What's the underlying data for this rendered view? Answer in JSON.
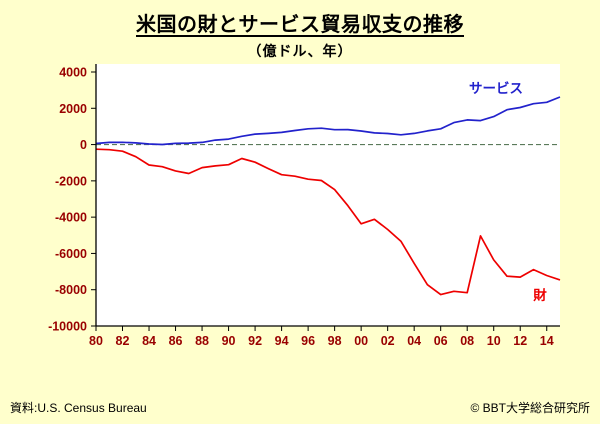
{
  "header": {
    "title": "米国の財とサービス貿易収支の推移",
    "subtitle": "（億ドル、年）"
  },
  "footer": {
    "source": "資料:U.S. Census Bureau",
    "copyright": "© BBT大学総合研究所"
  },
  "colors": {
    "page_bg": "#FFFFCC",
    "plot_bg": "#FFFFFF",
    "axis": "#000000",
    "axis_labels": "#990000",
    "zero_line": "#5A7A5A",
    "services_line": "#2222CC",
    "goods_line": "#EE0000"
  },
  "chart_data": {
    "type": "line",
    "title": "米国の財とサービス貿易収支の推移",
    "unit_note": "（億ドル、年）",
    "xlabel": "年",
    "ylabel": "億ドル",
    "ylim": [
      -10000,
      4000
    ],
    "yticks": [
      4000,
      2000,
      0,
      -2000,
      -4000,
      -6000,
      -8000,
      -10000
    ],
    "grid": false,
    "zero_line_dashed": true,
    "legend_position": "inline",
    "x": [
      1980,
      1981,
      1982,
      1983,
      1984,
      1985,
      1986,
      1987,
      1988,
      1989,
      1990,
      1991,
      1992,
      1993,
      1994,
      1995,
      1996,
      1997,
      1998,
      1999,
      2000,
      2001,
      2002,
      2003,
      2004,
      2005,
      2006,
      2007,
      2008,
      2009,
      2010,
      2011,
      2012,
      2013,
      2014,
      2015
    ],
    "xtick_years": [
      1980,
      1982,
      1984,
      1986,
      1988,
      1990,
      1992,
      1994,
      1996,
      1998,
      2000,
      2002,
      2004,
      2006,
      2008,
      2010,
      2012,
      2014
    ],
    "xtick_labels": [
      "80",
      "82",
      "84",
      "86",
      "88",
      "90",
      "92",
      "94",
      "96",
      "98",
      "00",
      "02",
      "04",
      "06",
      "08",
      "10",
      "12",
      "14"
    ],
    "series": [
      {
        "name": "サービス",
        "color": "#2222CC",
        "values": [
          61,
          119,
          123,
          93,
          34,
          3,
          65,
          79,
          122,
          246,
          302,
          458,
          577,
          618,
          673,
          778,
          869,
          901,
          821,
          827,
          749,
          644,
          612,
          541,
          618,
          756,
          869,
          1211,
          1359,
          1320,
          1540,
          1920,
          2045,
          2253,
          2331,
          2622
        ]
      },
      {
        "name": "財",
        "color": "#EE0000",
        "values": [
          -255,
          -280,
          -365,
          -671,
          -1125,
          -1222,
          -1451,
          -1596,
          -1270,
          -1177,
          -1110,
          -769,
          -969,
          -1325,
          -1658,
          -1742,
          -1910,
          -1981,
          -2482,
          -3371,
          -4365,
          -4119,
          -4683,
          -5324,
          -6548,
          -7724,
          -8270,
          -8088,
          -8162,
          -5036,
          -6354,
          -7254,
          -7304,
          -6890,
          -7216,
          -7457
        ]
      }
    ]
  }
}
